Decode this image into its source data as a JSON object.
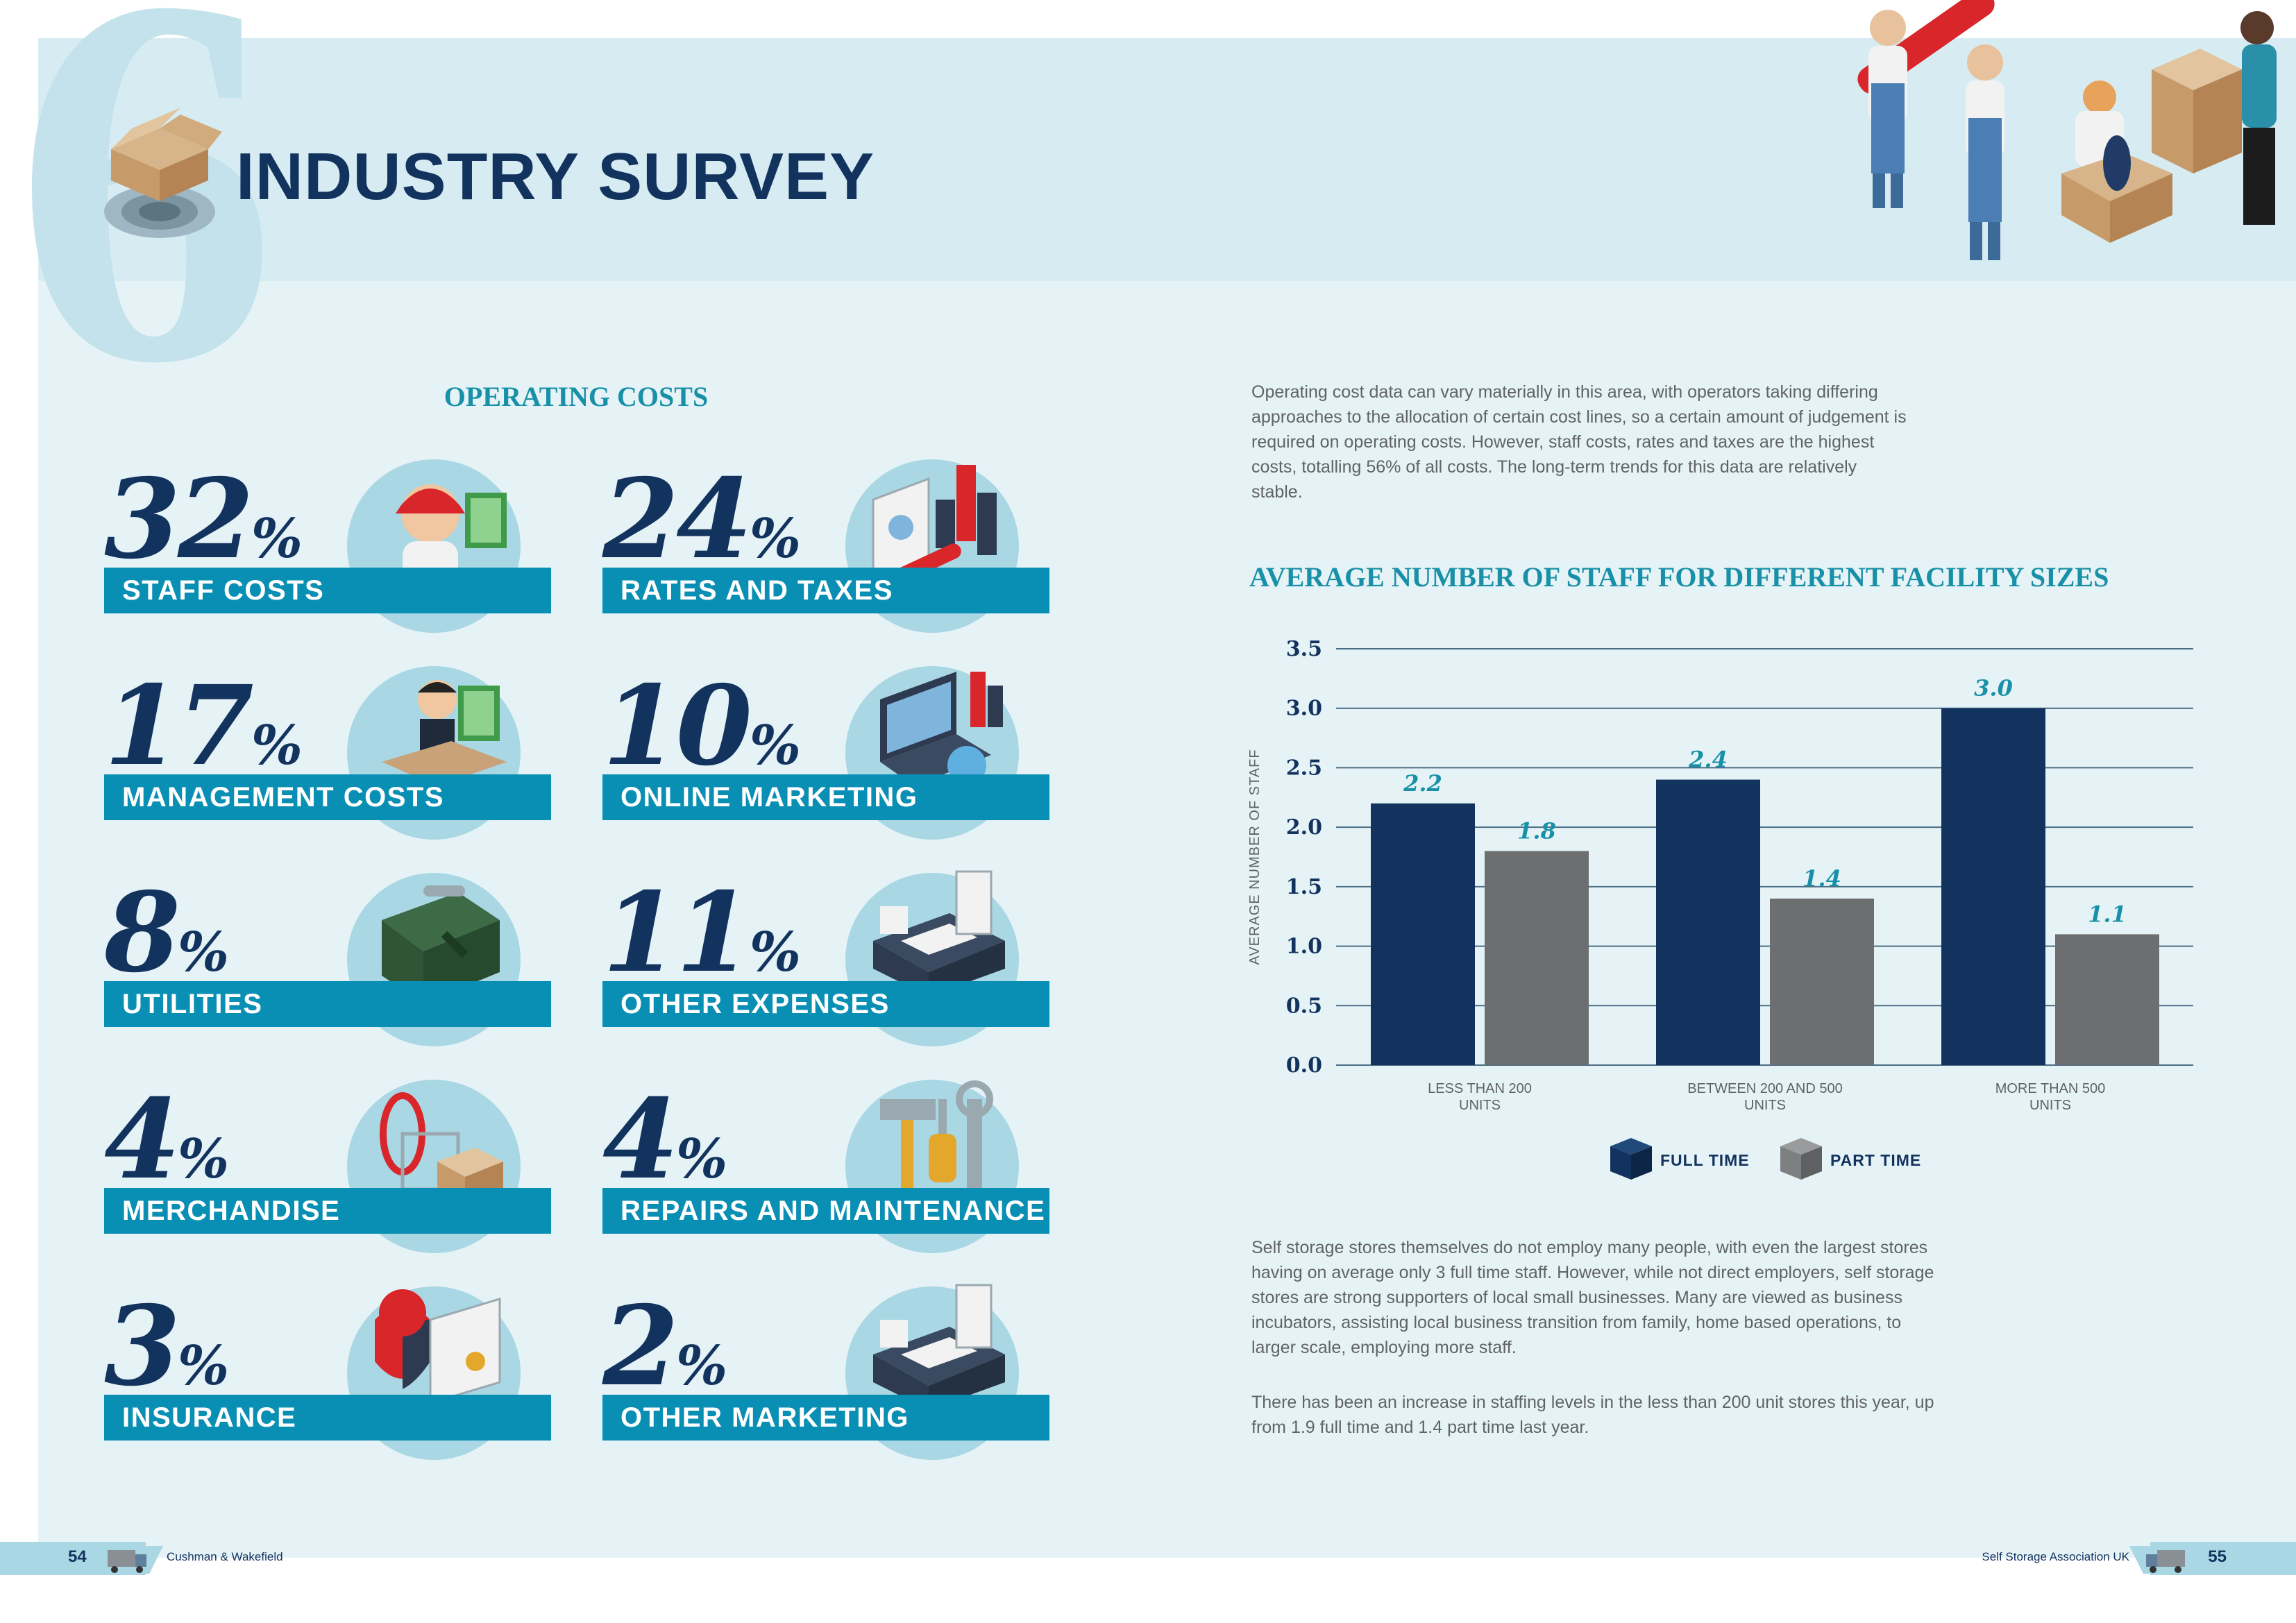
{
  "header": {
    "chapter_number": "6",
    "title": "INDUSTRY SURVEY"
  },
  "operating_costs": {
    "title": "OPERATING COSTS",
    "items": [
      {
        "value": "32",
        "label": "STAFF COSTS",
        "icon": "staff-icon"
      },
      {
        "value": "24",
        "label": "RATES AND TAXES",
        "icon": "documents-icon"
      },
      {
        "value": "17",
        "label": "MANAGEMENT COSTS",
        "icon": "manager-icon"
      },
      {
        "value": "10",
        "label": "ONLINE MARKETING",
        "icon": "laptop-icon"
      },
      {
        "value": "8",
        "label": "UTILITIES",
        "icon": "toolbox-icon"
      },
      {
        "value": "11",
        "label": "OTHER EXPENSES",
        "icon": "cash-register-icon"
      },
      {
        "value": "4",
        "label": "MERCHANDISE",
        "icon": "shopping-icon"
      },
      {
        "value": "4",
        "label": "REPAIRS AND MAINTENANCE",
        "icon": "tools-icon"
      },
      {
        "value": "3",
        "label": "INSURANCE",
        "icon": "insurance-icon"
      },
      {
        "value": "2",
        "label": "OTHER MARKETING",
        "icon": "cash-register-icon"
      }
    ],
    "percent_symbol": "%"
  },
  "text": {
    "intro": "Operating cost data can vary materially in this area, with operators taking differing approaches to the allocation of certain cost lines, so a certain amount of judgement is required on operating costs. However, staff costs, rates and taxes are the highest costs, totalling 56% of all costs.  The long-term trends for this data are relatively stable.",
    "para1": "Self storage stores themselves do not employ many people, with even the largest stores having on average only 3 full time staff.  However, while not direct employers, self storage stores are strong supporters of local small businesses. Many are viewed as business incubators, assisting local business transition from family, home based operations, to larger scale, employing more staff.",
    "para2": "There has been an increase in staffing levels in the less than 200 unit stores this year, up from 1.9 full time and 1.4 part time last year."
  },
  "chart_data": {
    "type": "bar",
    "title": "AVERAGE NUMBER OF STAFF FOR DIFFERENT FACILITY SIZES",
    "ylabel": "AVERAGE NUMBER OF STAFF",
    "xlabel": "",
    "categories": [
      [
        "LESS THAN 200",
        "UNITS"
      ],
      [
        "BETWEEN 200 AND 500",
        "UNITS"
      ],
      [
        "MORE THAN 500",
        "UNITS"
      ]
    ],
    "series": [
      {
        "name": "FULL TIME",
        "values": [
          2.2,
          2.4,
          3.0
        ],
        "color": "#13335f"
      },
      {
        "name": "PART TIME",
        "values": [
          1.8,
          1.4,
          1.1
        ],
        "color": "#6d6e70"
      }
    ],
    "ylim": [
      0,
      3.5
    ],
    "yticks": [
      "0.0",
      "0.5",
      "1.0",
      "1.5",
      "2.0",
      "2.5",
      "3.0",
      "3.5"
    ],
    "data_labels": [
      [
        "2.2",
        "2.4",
        "3.0"
      ],
      [
        "1.8",
        "1.4",
        "1.1"
      ]
    ],
    "grid": true,
    "legend": "bottom"
  },
  "footer": {
    "left_page": "54",
    "left_text": "Cushman & Wakefield",
    "right_page": "55",
    "right_text": "Self Storage Association UK"
  },
  "colors": {
    "navy": "#13335f",
    "teal": "#0a8fb4",
    "grey": "#6d6e70",
    "light_circle": "#a9d7e3"
  }
}
